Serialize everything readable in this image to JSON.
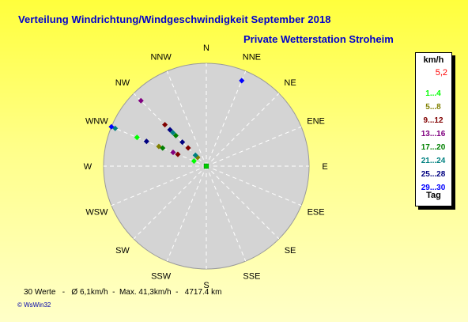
{
  "title": "Verteilung Windrichtung/Windgeschwindigkeit  September 2018",
  "subtitle": "Private Wetterstation Stroheim",
  "legend": {
    "header": "km/h",
    "main_direction_value": "5,2",
    "ranges": [
      {
        "label": "1...4",
        "color": "#00ff00"
      },
      {
        "label": "5...8",
        "color": "#808000"
      },
      {
        "label": "9...12",
        "color": "#800000"
      },
      {
        "label": "13...16",
        "color": "#800080"
      },
      {
        "label": "17...20",
        "color": "#008000"
      },
      {
        "label": "21...24",
        "color": "#008080"
      },
      {
        "label": "25...28",
        "color": "#000080"
      },
      {
        "label": "29...30",
        "color": "#0000ff"
      }
    ],
    "footer": "Tag"
  },
  "stats": {
    "line": "30 Werte   -   Ø 6,1km/h  -  Max. 41,3km/h  -   4717.4 km"
  },
  "copyright": "© WsWin32",
  "chart_data": {
    "type": "scatter",
    "subtype": "wind-rose (polar)",
    "directions": [
      "N",
      "NNE",
      "NE",
      "ENE",
      "E",
      "ESE",
      "SE",
      "SSE",
      "S",
      "SSW",
      "SW",
      "WSW",
      "W",
      "WNW",
      "NW",
      "NNW"
    ],
    "radial_unit": "relative frequency (unlabeled)",
    "series": [
      {
        "name": "1...4",
        "color": "#00ff00",
        "points": [
          {
            "direction_deg": 292.5,
            "r": 0.73
          },
          {
            "direction_deg": 292.5,
            "r": 0.13
          }
        ]
      },
      {
        "name": "5...8",
        "color": "#808000",
        "points": [
          {
            "direction_deg": 292.5,
            "r": 0.5
          },
          {
            "direction_deg": 315,
            "r": 0.12
          }
        ]
      },
      {
        "name": "9...12",
        "color": "#800000",
        "points": [
          {
            "direction_deg": 315,
            "r": 0.57
          },
          {
            "direction_deg": 292.5,
            "r": 0.3
          },
          {
            "direction_deg": 315,
            "r": 0.25
          }
        ]
      },
      {
        "name": "13...16",
        "color": "#800080",
        "points": [
          {
            "direction_deg": 315,
            "r": 0.9
          },
          {
            "direction_deg": 292.5,
            "r": 0.35
          }
        ]
      },
      {
        "name": "17...20",
        "color": "#008000",
        "points": [
          {
            "direction_deg": 315,
            "r": 0.42
          },
          {
            "direction_deg": 292.5,
            "r": 0.46
          }
        ]
      },
      {
        "name": "21...24",
        "color": "#008080",
        "points": [
          {
            "direction_deg": 292.5,
            "r": 0.96
          },
          {
            "direction_deg": 315,
            "r": 0.46
          },
          {
            "direction_deg": 315,
            "r": 0.15
          }
        ]
      },
      {
        "name": "25...28",
        "color": "#000080",
        "points": [
          {
            "direction_deg": 315,
            "r": 0.5
          },
          {
            "direction_deg": 292.5,
            "r": 0.63
          },
          {
            "direction_deg": 315,
            "r": 0.33
          }
        ]
      },
      {
        "name": "29...30",
        "color": "#0000ff",
        "points": [
          {
            "direction_deg": 22.5,
            "r": 0.9
          },
          {
            "direction_deg": 292.5,
            "r": 1.0
          }
        ]
      }
    ]
  }
}
